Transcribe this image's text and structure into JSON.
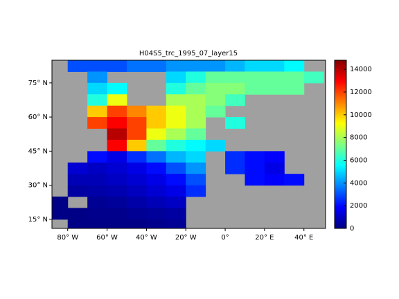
{
  "chart_data": {
    "type": "heatmap",
    "title": "H04S5_trc_1995_07_layer15",
    "lon": [
      -85,
      -75,
      -65,
      -55,
      -45,
      -35,
      -25,
      -15,
      -5,
      5,
      15,
      25,
      35,
      45
    ],
    "lat": [
      82.5,
      77.5,
      72.5,
      67.5,
      62.5,
      57.5,
      52.5,
      47.5,
      42.5,
      37.5,
      32.5,
      27.5,
      22.5,
      17.5,
      12.5
    ],
    "z": [
      [
        null,
        3000,
        3000,
        3000,
        3500,
        3500,
        4000,
        4000,
        4000,
        4500,
        5000,
        5000,
        5500,
        null
      ],
      [
        null,
        null,
        4000,
        null,
        null,
        null,
        5000,
        6000,
        7000,
        7000,
        7000,
        7000,
        7000,
        6500
      ],
      [
        null,
        null,
        5000,
        5500,
        null,
        null,
        6000,
        7000,
        7500,
        7500,
        7000,
        7000,
        7000,
        null
      ],
      [
        null,
        null,
        6000,
        9000,
        null,
        null,
        8000,
        8000,
        7500,
        6500,
        null,
        null,
        null,
        null
      ],
      [
        null,
        null,
        10000,
        12000,
        11000,
        10000,
        9000,
        8000,
        7000,
        null,
        null,
        null,
        null,
        null
      ],
      [
        null,
        null,
        12000,
        13000,
        12000,
        10000,
        9000,
        8000,
        null,
        6000,
        null,
        null,
        null,
        null
      ],
      [
        null,
        null,
        null,
        14000,
        12000,
        9000,
        8000,
        7000,
        null,
        null,
        null,
        null,
        null,
        null
      ],
      [
        null,
        null,
        null,
        13000,
        10000,
        7000,
        6000,
        5500,
        5000,
        null,
        null,
        null,
        null,
        null
      ],
      [
        null,
        null,
        2000,
        1500,
        2500,
        3500,
        4500,
        5000,
        null,
        2500,
        2000,
        1800,
        null,
        null
      ],
      [
        null,
        1200,
        1000,
        1200,
        1500,
        2000,
        3000,
        4000,
        null,
        2500,
        2000,
        1500,
        null,
        null
      ],
      [
        null,
        800,
        800,
        1000,
        1200,
        1500,
        2000,
        3000,
        null,
        null,
        2000,
        1800,
        2000,
        null
      ],
      [
        null,
        500,
        600,
        700,
        900,
        1200,
        1500,
        2500,
        null,
        null,
        null,
        null,
        null,
        null
      ],
      [
        100,
        null,
        300,
        400,
        600,
        800,
        1000,
        null,
        null,
        null,
        null,
        null,
        null,
        null
      ],
      [
        100,
        100,
        200,
        200,
        300,
        400,
        500,
        null,
        null,
        null,
        null,
        null,
        null,
        null
      ],
      [
        null,
        100,
        100,
        100,
        100,
        200,
        300,
        null,
        null,
        null,
        null,
        null,
        null,
        null
      ]
    ],
    "xlim": [
      -88,
      51
    ],
    "ylim": [
      11,
      85
    ],
    "xticks": [
      {
        "value": -80,
        "label": "80° W"
      },
      {
        "value": -60,
        "label": "60° W"
      },
      {
        "value": -40,
        "label": "40° W"
      },
      {
        "value": -20,
        "label": "20° W"
      },
      {
        "value": 0,
        "label": "0°"
      },
      {
        "value": 20,
        "label": "20° E"
      },
      {
        "value": 40,
        "label": "40° E"
      }
    ],
    "yticks": [
      {
        "value": 15,
        "label": "15° N"
      },
      {
        "value": 30,
        "label": "30° N"
      },
      {
        "value": 45,
        "label": "45° N"
      },
      {
        "value": 60,
        "label": "60° N"
      },
      {
        "value": 75,
        "label": "75° N"
      }
    ],
    "clim": [
      0,
      14800
    ],
    "cticks": [
      0,
      2000,
      4000,
      6000,
      8000,
      10000,
      12000,
      14000
    ],
    "colormap": "jet",
    "land_color": "#a0a0a0"
  }
}
